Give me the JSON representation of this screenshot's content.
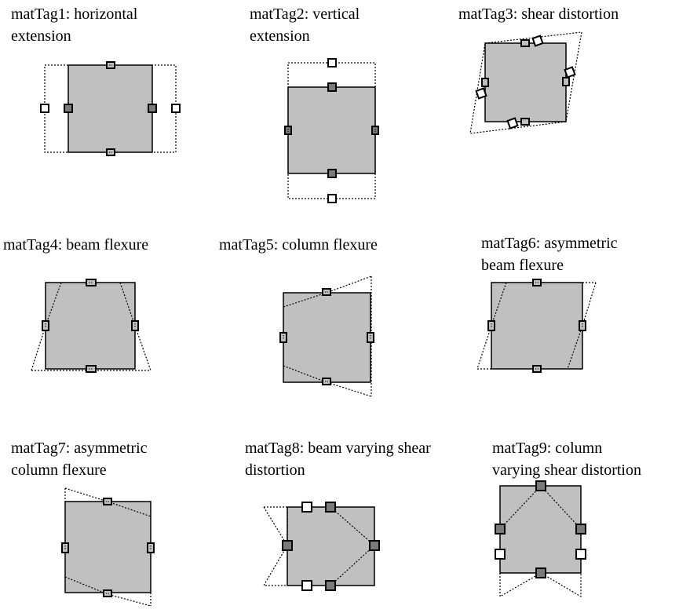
{
  "panels": [
    {
      "line1": "matTag1:  horizontal",
      "line2": "extension",
      "kind": "horizontal-extension"
    },
    {
      "line1": "matTag2: vertical",
      "line2": "extension",
      "kind": "vertical-extension"
    },
    {
      "line1": "matTag3: shear distortion",
      "line2": "",
      "kind": "shear-distortion"
    },
    {
      "line1": "matTag4: beam flexure",
      "line2": "",
      "kind": "beam-flexure"
    },
    {
      "line1": "matTag5: column flexure",
      "line2": "",
      "kind": "column-flexure"
    },
    {
      "line1": "matTag6: asymmetric",
      "line2": "beam flexure",
      "kind": "asymmetric-beam-flexure"
    },
    {
      "line1": "matTag7: asymmetric",
      "line2": "column flexure",
      "kind": "asymmetric-column-flexure"
    },
    {
      "line1": "matTag8: beam varying shear",
      "line2": "distortion",
      "kind": "beam-varying-shear"
    },
    {
      "line1": "matTag9: column",
      "line2": "varying shear distortion",
      "kind": "column-varying-shear"
    }
  ],
  "colors": {
    "block_fill": "#c0c0c0",
    "node_dark": "#7a7a7a",
    "node_white": "#ffffff",
    "outline": "#000000"
  }
}
